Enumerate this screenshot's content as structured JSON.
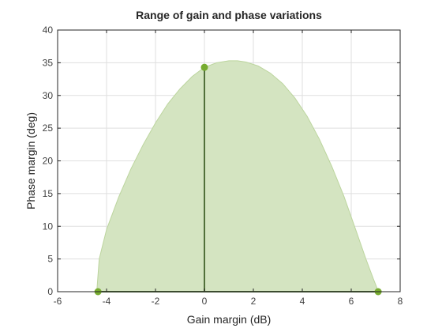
{
  "chart_data": {
    "type": "area",
    "title": "Range of gain and phase variations",
    "xlabel": "Gain margin (dB)",
    "ylabel": "Phase margin (deg)",
    "xlim": [
      -6,
      8
    ],
    "ylim": [
      0,
      40
    ],
    "xticks": [
      -6,
      -4,
      -2,
      0,
      2,
      4,
      6,
      8
    ],
    "yticks": [
      0,
      5,
      10,
      15,
      20,
      25,
      30,
      35,
      40
    ],
    "grid": true,
    "legend": "none",
    "region": {
      "x": [
        -4.4,
        -4.3,
        -4.0,
        -3.5,
        -3.0,
        -2.5,
        -2.0,
        -1.5,
        -1.0,
        -0.5,
        0.0,
        0.5,
        1.0,
        1.35,
        1.7,
        2.2,
        2.7,
        3.2,
        3.7,
        4.2,
        4.7,
        5.2,
        5.7,
        6.2,
        6.6,
        6.9,
        7.05,
        7.1
      ],
      "y": [
        0,
        5.0,
        9.5,
        14.5,
        18.8,
        22.5,
        25.8,
        28.7,
        31.0,
        32.9,
        34.3,
        35.0,
        35.3,
        35.3,
        35.1,
        34.5,
        33.4,
        31.8,
        29.6,
        26.8,
        23.3,
        19.2,
        14.6,
        9.3,
        5.0,
        2.0,
        0.6,
        0
      ]
    },
    "stem": {
      "x": 0,
      "y": 34.3
    },
    "endpoints": [
      {
        "x": -4.35,
        "y": 0
      },
      {
        "x": 7.1,
        "y": 0
      }
    ],
    "colors": {
      "region_fill": "#d4e4c1",
      "region_edge": "#bcd59e",
      "stem_line": "#51703a",
      "marker": "#77ac30",
      "grid": "#dfdfdf",
      "axis": "#262626"
    }
  }
}
